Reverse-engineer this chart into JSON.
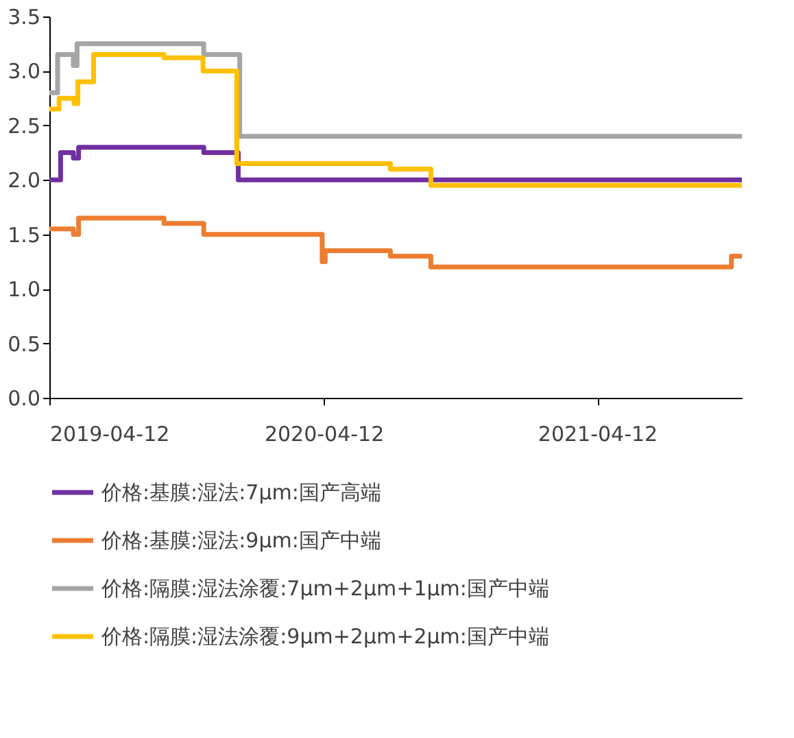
{
  "chart_data": {
    "type": "step",
    "xlim": [
      "2019-04-12",
      "2021-10-22"
    ],
    "xticks": [
      "2019-04-12",
      "2020-04-12",
      "2021-04-12"
    ],
    "ylim": [
      0,
      3.5
    ],
    "yticks": [
      {
        "value": 0,
        "label": "0.0"
      },
      {
        "value": 0.5,
        "label": "0.5"
      },
      {
        "value": 1,
        "label": "1.0"
      },
      {
        "value": 1.5,
        "label": "1.5"
      },
      {
        "value": 2,
        "label": "2.0"
      },
      {
        "value": 2.5,
        "label": "2.5"
      },
      {
        "value": 3,
        "label": "3.0"
      },
      {
        "value": 3.5,
        "label": "3.5"
      }
    ],
    "grid": false,
    "legend": "bottom",
    "marker": "none",
    "line_style": "solid",
    "series": [
      {
        "name": "价格:基膜:湿法:7μm:国产高端",
        "color": "#7030a0",
        "x": [
          "2019-04-12",
          "2019-04-27",
          "2019-05-14",
          "2019-05-21",
          "2019-11-04",
          "2019-12-20",
          "2021-10-22"
        ],
        "values": [
          2.0,
          2.25,
          2.2,
          2.3,
          2.25,
          2.0,
          2.0
        ]
      },
      {
        "name": "价格:基膜:湿法:9μm:国产中端",
        "color": "#ed7d31",
        "x": [
          "2019-04-12",
          "2019-05-14",
          "2019-05-21",
          "2019-09-12",
          "2019-11-04",
          "2020-04-10",
          "2020-04-14",
          "2020-07-10",
          "2020-09-02",
          "2021-10-08",
          "2021-10-22"
        ],
        "values": [
          1.55,
          1.5,
          1.65,
          1.6,
          1.5,
          1.25,
          1.35,
          1.3,
          1.2,
          1.3,
          1.3
        ]
      },
      {
        "name": "价格:隔膜:湿法涂覆:7μm+2μm+1μm:国产中端",
        "color": "#a5a5a5",
        "x": [
          "2019-04-12",
          "2019-04-23",
          "2019-05-14",
          "2019-05-19",
          "2019-11-04",
          "2019-12-22",
          "2021-10-22"
        ],
        "values": [
          2.8,
          3.15,
          3.05,
          3.25,
          3.15,
          2.4,
          2.4
        ]
      },
      {
        "name": "价格:隔膜:湿法涂覆:9μm+2μm+2μm:国产中端",
        "color": "#ffc000",
        "x": [
          "2019-04-12",
          "2019-04-25",
          "2019-05-15",
          "2019-05-20",
          "2019-06-10",
          "2019-09-12",
          "2019-11-03",
          "2019-12-18",
          "2020-07-10",
          "2020-09-02",
          "2021-10-22"
        ],
        "values": [
          2.65,
          2.75,
          2.7,
          2.9,
          3.15,
          3.12,
          3.0,
          2.15,
          2.1,
          1.95,
          1.95
        ]
      }
    ]
  }
}
